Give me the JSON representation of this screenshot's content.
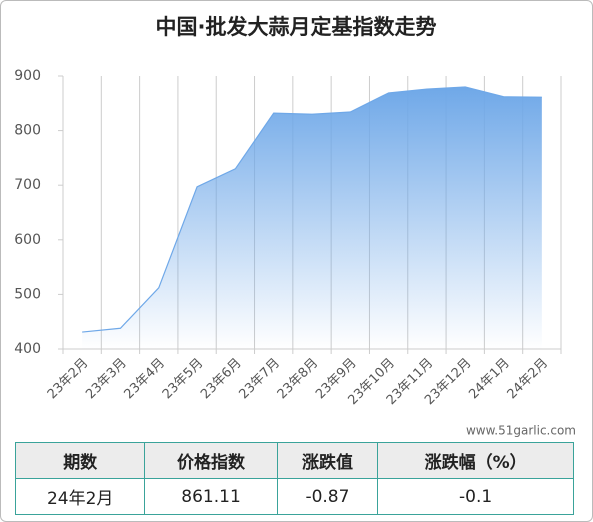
{
  "chart_data": {
    "type": "area",
    "title": "中国·批发大蒜月定基指数走势",
    "categories": [
      "23年2月",
      "23年3月",
      "23年4月",
      "23年5月",
      "23年6月",
      "23年7月",
      "23年8月",
      "23年9月",
      "23年10月",
      "23年11月",
      "23年12月",
      "24年1月",
      "24年2月"
    ],
    "values": [
      431,
      438,
      512,
      697,
      730,
      832,
      830,
      834,
      869,
      876,
      880,
      862,
      861.11
    ],
    "color": "#6fa8e8",
    "ylim": [
      400,
      900
    ],
    "yticks": [
      400,
      500,
      600,
      700,
      800,
      900
    ],
    "grid": true
  },
  "watermark": "www.51garlic.com",
  "table": {
    "header": [
      "期数",
      "价格指数",
      "涨跌值",
      "涨跌幅（%）"
    ],
    "rows": [
      [
        "24年2月",
        "861.11",
        "-0.87",
        "-0.1"
      ]
    ]
  }
}
